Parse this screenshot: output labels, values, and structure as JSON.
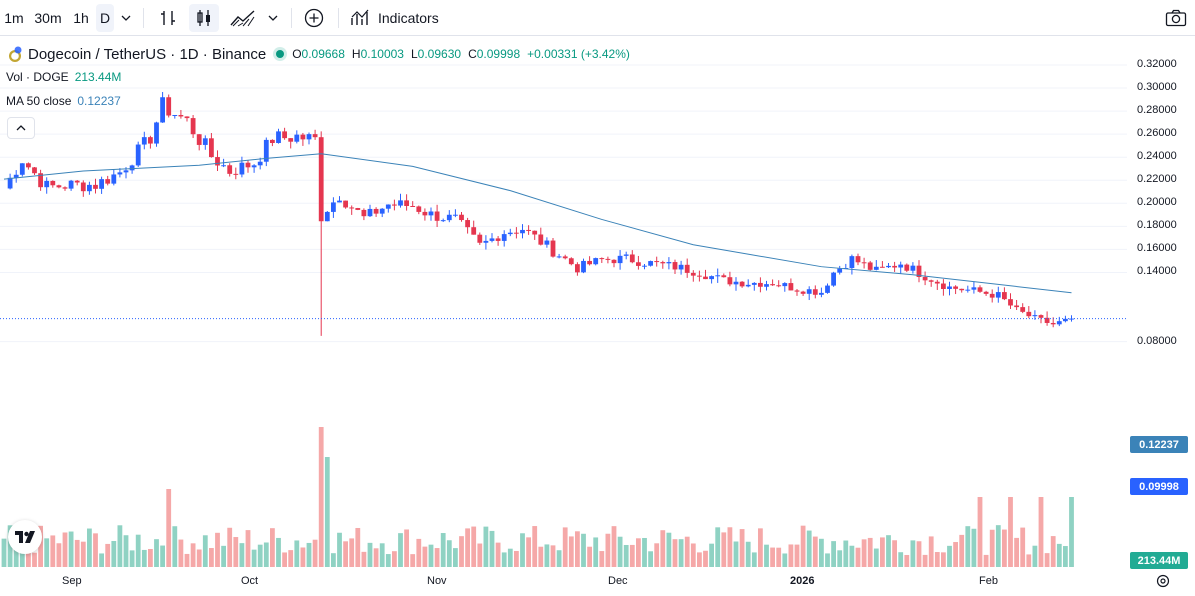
{
  "toolbar": {
    "intervals": [
      "1m",
      "30m",
      "1h",
      "D"
    ],
    "active_interval": "D",
    "indicators_label": "Indicators",
    "icons": [
      "dropdown-chevron-icon",
      "bar-chart-icon",
      "candles-icon",
      "area-chart-icon",
      "add-compare-icon",
      "indicators-icon",
      "camera-icon"
    ]
  },
  "legend": {
    "symbol": "Dogecoin / TetherUS · 1D · Binance",
    "open_label": "O",
    "open": "0.09668",
    "high_label": "H",
    "high": "0.10003",
    "low_label": "L",
    "low": "0.09630",
    "close_label": "C",
    "close": "0.09998",
    "change": "+0.00331 (+3.42%)",
    "vol_label": "Vol · DOGE",
    "vol_value": "213.44M",
    "ma_label": "MA 50 close",
    "ma_value": "0.12237"
  },
  "price_axis": {
    "ticks": [
      "0.32000",
      "0.30000",
      "0.28000",
      "0.26000",
      "0.24000",
      "0.22000",
      "0.20000",
      "0.18000",
      "0.16000",
      "0.14000",
      "0.08000"
    ],
    "tick_values": [
      0.32,
      0.3,
      0.28,
      0.26,
      0.24,
      0.22,
      0.2,
      0.18,
      0.16,
      0.14,
      0.08
    ],
    "ma_tag": "0.12237",
    "price_tag": "0.09998",
    "volume_tag": "213.44M"
  },
  "time_axis": {
    "labels": [
      "Sep",
      "Oct",
      "Nov",
      "Dec",
      "2026",
      "Feb"
    ],
    "bold": [
      false,
      false,
      false,
      false,
      true,
      false
    ]
  },
  "colors": {
    "up": "#2962ff",
    "down": "#e5364f",
    "vol_up": "#8fd2c3",
    "vol_down": "#f5a8a8",
    "ma": "#3b83b8",
    "green": "#089981"
  },
  "chart_data": {
    "type": "candlestick",
    "series_ma": "MA 50 close",
    "close_points": [
      {
        "x": "Aug 19",
        "y": 0.213
      },
      {
        "x": "Aug 22",
        "y": 0.238
      },
      {
        "x": "Aug 26",
        "y": 0.214
      },
      {
        "x": "Aug 30",
        "y": 0.216
      },
      {
        "x": "Sep 3",
        "y": 0.216
      },
      {
        "x": "Sep 7",
        "y": 0.227
      },
      {
        "x": "Sep 12",
        "y": 0.257
      },
      {
        "x": "Sep 14",
        "y": 0.285
      },
      {
        "x": "Sep 18",
        "y": 0.271
      },
      {
        "x": "Sep 22",
        "y": 0.241
      },
      {
        "x": "Sep 25",
        "y": 0.228
      },
      {
        "x": "Sep 29",
        "y": 0.235
      },
      {
        "x": "Oct 2",
        "y": 0.256
      },
      {
        "x": "Oct 6",
        "y": 0.258
      },
      {
        "x": "Oct 9",
        "y": 0.255
      },
      {
        "x": "Oct 10",
        "y": 0.19
      },
      {
        "x": "Oct 13",
        "y": 0.207
      },
      {
        "x": "Oct 17",
        "y": 0.187
      },
      {
        "x": "Oct 21",
        "y": 0.199
      },
      {
        "x": "Oct 25",
        "y": 0.198
      },
      {
        "x": "Oct 28",
        "y": 0.19
      },
      {
        "x": "Nov 1",
        "y": 0.186
      },
      {
        "x": "Nov 5",
        "y": 0.163
      },
      {
        "x": "Nov 9",
        "y": 0.175
      },
      {
        "x": "Nov 12",
        "y": 0.178
      },
      {
        "x": "Nov 17",
        "y": 0.159
      },
      {
        "x": "Nov 21",
        "y": 0.144
      },
      {
        "x": "Nov 25",
        "y": 0.151
      },
      {
        "x": "Nov 29",
        "y": 0.152
      },
      {
        "x": "Dec 3",
        "y": 0.148
      },
      {
        "x": "Dec 7",
        "y": 0.145
      },
      {
        "x": "Dec 11",
        "y": 0.14
      },
      {
        "x": "Dec 15",
        "y": 0.133
      },
      {
        "x": "Dec 19",
        "y": 0.131
      },
      {
        "x": "Dec 23",
        "y": 0.131
      },
      {
        "x": "Dec 27",
        "y": 0.126
      },
      {
        "x": "Dec 31",
        "y": 0.123
      },
      {
        "x": "Jan 2",
        "y": 0.14
      },
      {
        "x": "Jan 5",
        "y": 0.152
      },
      {
        "x": "Jan 9",
        "y": 0.141
      },
      {
        "x": "Jan 13",
        "y": 0.148
      },
      {
        "x": "Jan 17",
        "y": 0.137
      },
      {
        "x": "Jan 21",
        "y": 0.127
      },
      {
        "x": "Jan 25",
        "y": 0.124
      },
      {
        "x": "Jan 29",
        "y": 0.12
      },
      {
        "x": "Feb 1",
        "y": 0.107
      },
      {
        "x": "Feb 4",
        "y": 0.1
      },
      {
        "x": "Feb 7",
        "y": 0.095
      },
      {
        "x": "Feb 10",
        "y": 0.0997
      }
    ],
    "ma_points": [
      {
        "x": "Aug 19",
        "y": 0.221
      },
      {
        "x": "Sep 1",
        "y": 0.228
      },
      {
        "x": "Sep 20",
        "y": 0.233
      },
      {
        "x": "Oct 1",
        "y": 0.239
      },
      {
        "x": "Oct 10",
        "y": 0.243
      },
      {
        "x": "Oct 25",
        "y": 0.232
      },
      {
        "x": "Nov 10",
        "y": 0.211
      },
      {
        "x": "Nov 25",
        "y": 0.186
      },
      {
        "x": "Dec 10",
        "y": 0.164
      },
      {
        "x": "Dec 31",
        "y": 0.145
      },
      {
        "x": "Jan 15",
        "y": 0.138
      },
      {
        "x": "Feb 10",
        "y": 0.1224
      }
    ],
    "ylim": [
      0.072,
      0.326
    ]
  }
}
